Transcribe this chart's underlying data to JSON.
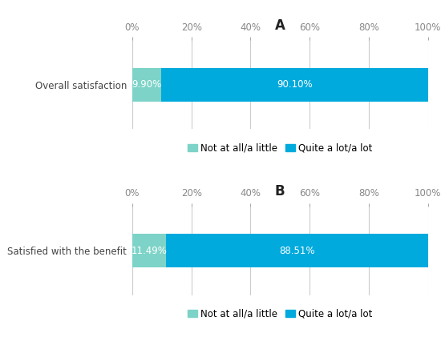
{
  "panel_A": {
    "title": "A",
    "category": "Overall satisfaction",
    "values": [
      9.9,
      90.1
    ],
    "labels": [
      "9.90%",
      "90.10%"
    ],
    "colors": [
      "#7dd3c8",
      "#00aadd"
    ]
  },
  "panel_B": {
    "title": "B",
    "category": "Satisfied with the benefit",
    "values": [
      11.49,
      88.51
    ],
    "labels": [
      "11.49%",
      "88.51%"
    ],
    "colors": [
      "#7dd3c8",
      "#00aadd"
    ]
  },
  "legend_labels": [
    "Not at all/a little",
    "Quite a lot/a lot"
  ],
  "legend_colors": [
    "#7dd3c8",
    "#00aadd"
  ],
  "xlabel_ticks": [
    0,
    20,
    40,
    60,
    80,
    100
  ],
  "background_color": "#ffffff",
  "bar_height": 0.45,
  "text_color_inside": "#ffffff",
  "label_fontsize": 8.5,
  "title_fontsize": 12,
  "legend_fontsize": 8.5,
  "tick_fontsize": 8.5,
  "category_fontsize": 8.5,
  "grid_color": "#cccccc",
  "tick_color": "#888888"
}
